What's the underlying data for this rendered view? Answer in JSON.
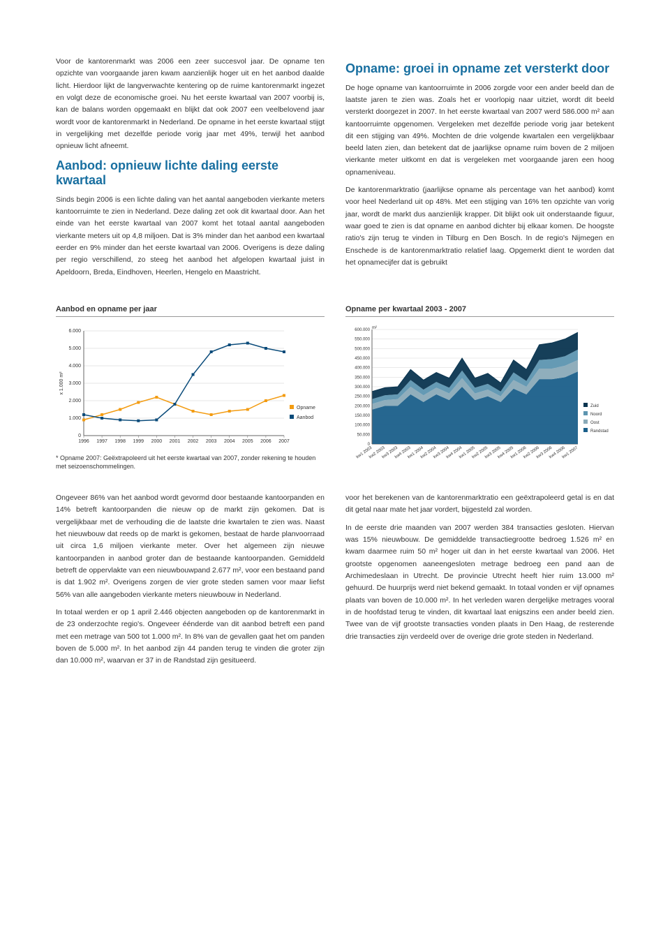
{
  "left_col": {
    "p1": "Voor de kantorenmarkt was 2006 een zeer succesvol jaar. De opname ten opzichte van voorgaande jaren kwam aanzienlijk hoger uit en het aanbod daalde licht. Hierdoor lijkt de langverwachte kentering op de ruime kantorenmarkt ingezet en volgt deze de economische groei. Nu het eerste kwartaal van 2007 voorbij is, kan de balans worden opgemaakt en blijkt dat ook 2007 een veelbelovend jaar wordt voor de kantorenmarkt in Nederland. De opname in het eerste kwartaal stijgt in vergelijking met dezelfde periode vorig jaar met 49%, terwijl het aanbod opnieuw licht afneemt.",
    "h1": "Aanbod: opnieuw lichte daling eerste kwartaal",
    "p2": "Sinds begin 2006 is een lichte daling van het aantal aangeboden vierkante meters kantoorruimte te zien in Nederland. Deze daling zet ook dit kwartaal door. Aan het einde van het eerste kwartaal van 2007 komt het totaal aantal aangeboden vierkante meters uit op 4,8 miljoen. Dat is 3% minder dan het aanbod een kwartaal eerder en 9% minder dan het eerste kwartaal van 2006. Overigens is deze daling per regio verschillend, zo steeg het aanbod het afgelopen kwartaal juist in Apeldoorn, Breda, Eindhoven, Heerlen, Hengelo en Maastricht."
  },
  "right_col": {
    "h1": "Opname: groei in opname zet versterkt door",
    "p1": "De hoge opname van kantoorruimte in 2006 zorgde voor een ander beeld dan de laatste jaren te zien was. Zoals het er voorlopig naar uitziet, wordt dit beeld versterkt doorgezet in 2007. In het eerste kwartaal van 2007 werd 586.000 m² aan kantoorruimte opgenomen. Vergeleken met dezelfde periode vorig jaar betekent dit een stijging van 49%. Mochten de drie volgende kwartalen een vergelijkbaar beeld laten zien, dan betekent dat de jaarlijkse opname ruim boven de 2 miljoen vierkante meter uitkomt en dat is vergeleken met voorgaande jaren een hoog opnameniveau.",
    "p2": "De kantorenmarktratio (jaarlijkse opname als percentage van het aanbod) komt voor heel Nederland uit op 48%. Met een stijging van 16% ten opzichte van vorig jaar, wordt de markt dus aanzienlijk krapper. Dit blijkt ook uit onderstaande figuur, waar goed te zien is dat opname en aanbod dichter bij elkaar komen. De hoogste ratio's zijn terug te vinden in Tilburg en Den Bosch. In de regio's Nijmegen en Enschede is de kantorenmarktratio relatief laag. Opgemerkt dient te worden dat het opnamecijfer dat is gebruikt"
  },
  "chart1": {
    "title": "Aanbod en opname per jaar",
    "type": "line",
    "y_axis_label": "x 1.000 m²",
    "y_ticks": [
      0,
      1000,
      2000,
      3000,
      4000,
      5000,
      6000
    ],
    "y_tick_labels": [
      "0",
      "1.000",
      "2.000",
      "3.000",
      "4.000",
      "5.000",
      "6.000"
    ],
    "ylim": [
      0,
      6000
    ],
    "x_labels": [
      "1996",
      "1997",
      "1998",
      "1999",
      "2000",
      "2001",
      "2002",
      "2003",
      "2004",
      "2005",
      "2006",
      "2007"
    ],
    "series": [
      {
        "name": "Opname",
        "color": "#f39c12",
        "marker": "square",
        "values": [
          900,
          1200,
          1500,
          1900,
          2200,
          1800,
          1400,
          1200,
          1400,
          1500,
          2000,
          2300
        ]
      },
      {
        "name": "Aanbod",
        "color": "#0a4b7a",
        "marker": "square",
        "values": [
          1200,
          1000,
          900,
          850,
          900,
          1800,
          3500,
          4800,
          5200,
          5300,
          5000,
          4800
        ]
      }
    ],
    "footnote": "* Opname 2007: Geëxtrapoleerd uit het eerste kwartaal van 2007, zonder rekening te houden met seizoenschommelingen.",
    "background_color": "#ffffff",
    "grid_color": "#cccccc",
    "axis_color": "#666666",
    "tick_fontsize": 7
  },
  "chart2": {
    "title": "Opname per kwartaal 2003 - 2007",
    "type": "stacked-area",
    "y_axis_label": "m²",
    "y_ticks": [
      0,
      50000,
      100000,
      150000,
      200000,
      250000,
      300000,
      350000,
      400000,
      450000,
      500000,
      550000,
      600000
    ],
    "y_tick_labels": [
      "0",
      "50.000",
      "100.000",
      "150.000",
      "200.000",
      "250.000",
      "300.000",
      "350.000",
      "400.000",
      "450.000",
      "500.000",
      "550.000",
      "600.000"
    ],
    "ylim": [
      0,
      600000
    ],
    "x_labels": [
      "kw1 2003",
      "kw2 2003",
      "kw3 2003",
      "kw4 2003",
      "kw1 2004",
      "kw2 2004",
      "kw3 2004",
      "kw4 2004",
      "kw1 2005",
      "kw2 2005",
      "kw3 2005",
      "kw4 2005",
      "kw1 2006",
      "kw2 2006",
      "kw3 2006",
      "kw4 2006",
      "kw1 2007"
    ],
    "series_stack": [
      {
        "name": "Randstad",
        "color": "#1a5f8a",
        "values": [
          180000,
          200000,
          200000,
          260000,
          220000,
          260000,
          230000,
          300000,
          230000,
          250000,
          220000,
          290000,
          260000,
          340000,
          340000,
          350000,
          380000
        ]
      },
      {
        "name": "Oost",
        "color": "#8aaab8",
        "values": [
          30000,
          30000,
          35000,
          40000,
          35000,
          35000,
          35000,
          45000,
          35000,
          35000,
          30000,
          45000,
          40000,
          55000,
          55000,
          60000,
          60000
        ]
      },
      {
        "name": "Noord",
        "color": "#5d95b0",
        "values": [
          25000,
          25000,
          25000,
          35000,
          30000,
          30000,
          30000,
          40000,
          30000,
          30000,
          25000,
          40000,
          30000,
          45000,
          50000,
          50000,
          55000
        ]
      },
      {
        "name": "Zuid",
        "color": "#0a3550",
        "values": [
          40000,
          40000,
          40000,
          55000,
          50000,
          50000,
          50000,
          65000,
          50000,
          55000,
          45000,
          65000,
          60000,
          80000,
          85000,
          90000,
          90000
        ]
      }
    ],
    "legend_order": [
      "Zuid",
      "Noord",
      "Oost",
      "Randstad"
    ],
    "legend_colors": {
      "Zuid": "#0a3550",
      "Noord": "#5d95b0",
      "Oost": "#8aaab8",
      "Randstad": "#1a5f8a"
    },
    "background_color": "#ffffff",
    "grid_color": "#cccccc",
    "axis_color": "#666666",
    "tick_fontsize": 6
  },
  "bottom_left": {
    "p1": "Ongeveer 86% van het aanbod wordt gevormd door bestaande kantoorpanden en 14% betreft kantoorpanden die nieuw op de markt zijn gekomen. Dat is vergelijkbaar met de verhouding die de laatste drie kwartalen te zien was. Naast het nieuwbouw dat reeds op de markt is gekomen, bestaat de harde planvoorraad uit circa 1,6 miljoen vierkante meter. Over het algemeen zijn nieuwe kantoorpanden in aanbod groter dan de bestaande kantoorpanden. Gemiddeld betreft de oppervlakte van een nieuwbouwpand 2.677 m², voor een bestaand pand is dat 1.902 m². Overigens zorgen de vier grote steden samen voor maar liefst 56% van alle aangeboden vierkante meters nieuwbouw in Nederland.",
    "p2": "In totaal werden er op 1 april 2.446 objecten aangeboden op de kantorenmarkt in de 23 onderzochte regio's. Ongeveer éénderde van dit aanbod betreft een pand met een metrage van 500 tot 1.000 m². In 8% van de gevallen gaat het om panden boven de 5.000 m². In het aanbod zijn 44 panden terug te vinden die groter zijn dan 10.000 m², waarvan er 37 in de Randstad zijn gesitueerd."
  },
  "bottom_right": {
    "p1": "voor het berekenen van de kantorenmarktratio een geëxtrapoleerd getal is en dat dit getal naar mate het jaar vordert, bijgesteld zal worden.",
    "p2": "In de eerste drie maanden van 2007 werden 384 transacties gesloten. Hiervan was 15% nieuwbouw. De gemiddelde transactiegrootte bedroeg 1.526 m² en kwam daarmee ruim 50 m² hoger uit dan in het eerste kwartaal van 2006. Het grootste opgenomen aaneengesloten metrage bedroeg een pand aan de Archimedeslaan in Utrecht. De provincie Utrecht heeft hier ruim 13.000 m² gehuurd. De huurprijs werd niet bekend gemaakt. In totaal vonden er vijf opnames plaats van boven de 10.000 m². In het verleden waren dergelijke metrages vooral in de hoofdstad terug te vinden, dit kwartaal laat enigszins een ander beeld zien. Twee van de vijf grootste transacties vonden plaats in Den Haag, de resterende drie transacties zijn verdeeld over de overige drie grote steden in Nederland."
  }
}
